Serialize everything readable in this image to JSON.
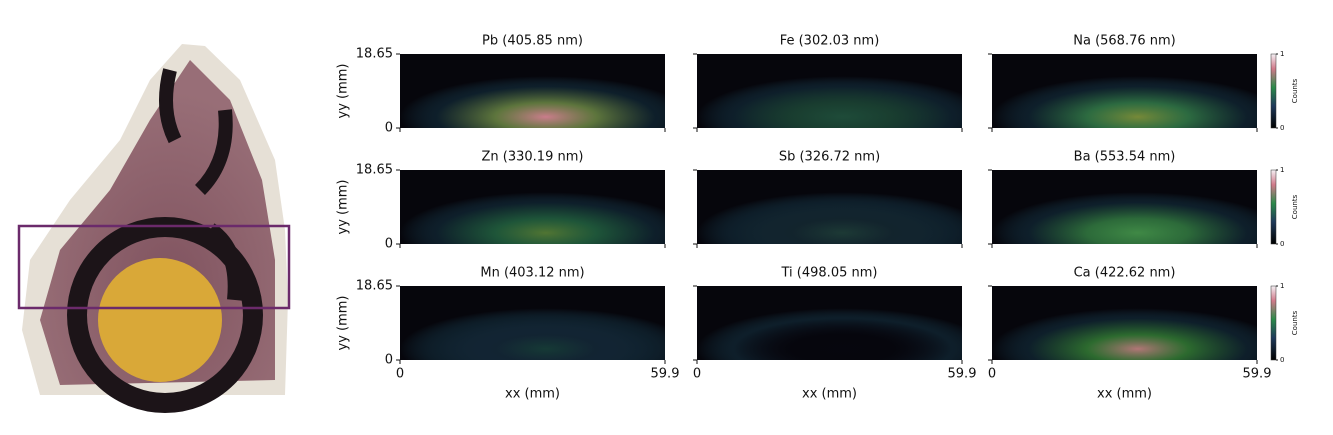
{
  "axes": {
    "xlabel": "xx (mm)",
    "ylabel": "yy (mm)",
    "xlim": [
      0,
      59.9
    ],
    "ylim": [
      0,
      18.65
    ],
    "xticks": [
      0,
      59.9
    ],
    "yticks": [
      0,
      18.65
    ]
  },
  "colorbar": {
    "label": "Counts",
    "ticks": [
      0,
      1
    ]
  },
  "panels": [
    {
      "title": "Pb (405.85 nm)"
    },
    {
      "title": "Fe (302.03 nm)"
    },
    {
      "title": "Na (568.76 nm)"
    },
    {
      "title": "Zn (330.19 nm)"
    },
    {
      "title": "Sb (326.72 nm)"
    },
    {
      "title": "Ba (553.54 nm)"
    },
    {
      "title": "Mn (403.12 nm)"
    },
    {
      "title": "Ti (498.05 nm)"
    },
    {
      "title": "Ca (422.62 nm)"
    }
  ]
}
